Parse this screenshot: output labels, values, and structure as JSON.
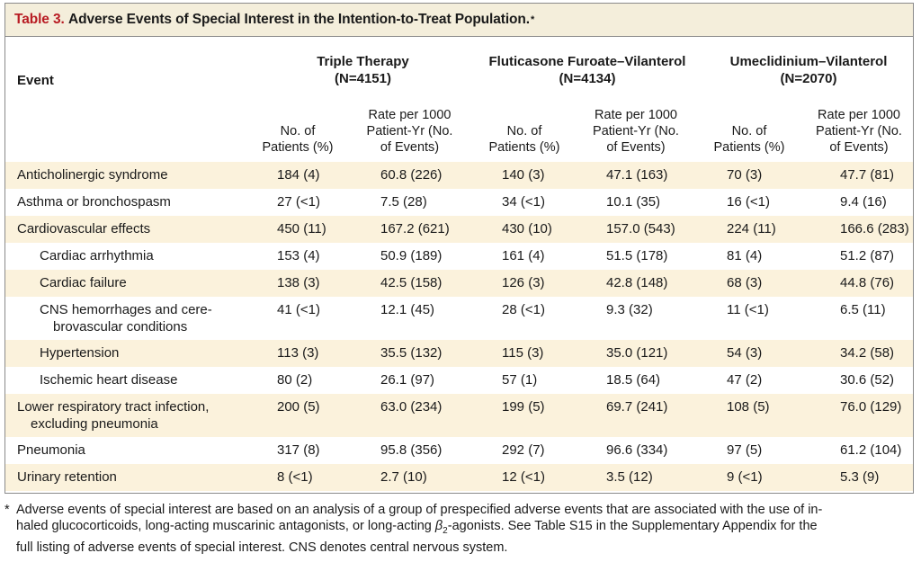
{
  "table": {
    "label": "Table 3.",
    "title": "Adverse Events of Special Interest in the Intention-to-Treat Population.",
    "title_mark": "*",
    "event_header": "Event",
    "groups": [
      {
        "name": "Triple Therapy",
        "n": "(N=4151)"
      },
      {
        "name": "Fluticasone Furoate–Vilanterol",
        "n": "(N=4134)"
      },
      {
        "name": "Umeclidinium–Vilanterol",
        "n": "(N=2070)"
      }
    ],
    "sub_no_1": "No. of",
    "sub_no_2": "Patients (%)",
    "sub_rate_1": "Rate per 1000",
    "sub_rate_2": "Patient-Yr (No.",
    "sub_rate_3": "of Events)",
    "rows": [
      {
        "event": "Anticholinergic syndrome",
        "cells": [
          "184 (4)",
          "60.8 (226)",
          "140 (3)",
          "47.1 (163)",
          "70 (3)",
          "47.7 (81)"
        ]
      },
      {
        "event": "Asthma or bronchospasm",
        "cells": [
          "27 (<1)",
          "7.5 (28)",
          "34 (<1)",
          "10.1 (35)",
          "16 (<1)",
          "9.4 (16)"
        ]
      },
      {
        "event": "Cardiovascular effects",
        "cells": [
          "450 (11)",
          "167.2 (621)",
          "430 (10)",
          "157.0 (543)",
          "224 (11)",
          "166.6 (283)"
        ]
      },
      {
        "event": "Cardiac arrhythmia",
        "cells": [
          "153 (4)",
          "50.9 (189)",
          "161 (4)",
          "51.5 (178)",
          "81 (4)",
          "51.2 (87)"
        ]
      },
      {
        "event": "Cardiac failure",
        "cells": [
          "138 (3)",
          "42.5 (158)",
          "126 (3)",
          "42.8 (148)",
          "68 (3)",
          "44.8 (76)"
        ]
      },
      {
        "event": "CNS hemorrhages and cere-",
        "event_cont": "brovascular conditions",
        "cells": [
          "41 (<1)",
          "12.1 (45)",
          "28 (<1)",
          "9.3 (32)",
          "11 (<1)",
          "6.5 (11)"
        ]
      },
      {
        "event": "Hypertension",
        "cells": [
          "113 (3)",
          "35.5 (132)",
          "115 (3)",
          "35.0 (121)",
          "54 (3)",
          "34.2 (58)"
        ]
      },
      {
        "event": "Ischemic heart disease",
        "cells": [
          "80 (2)",
          "26.1 (97)",
          "57 (1)",
          "18.5 (64)",
          "47 (2)",
          "30.6 (52)"
        ]
      },
      {
        "event": "Lower respiratory tract infection,",
        "event_cont": "excluding pneumonia",
        "cells": [
          "200 (5)",
          "63.0 (234)",
          "199 (5)",
          "69.7 (241)",
          "108 (5)",
          "76.0 (129)"
        ]
      },
      {
        "event": "Pneumonia",
        "cells": [
          "317 (8)",
          "95.8 (356)",
          "292 (7)",
          "96.6 (334)",
          "97 (5)",
          "61.2 (104)"
        ]
      },
      {
        "event": "Urinary retention",
        "cells": [
          "8 (<1)",
          "2.7 (10)",
          "12 (<1)",
          "3.5 (12)",
          "9 (<1)",
          "5.3 (9)"
        ]
      }
    ],
    "footnote_mark": "*",
    "footnote_line1": "Adverse events of special interest are based on an analysis of a group of prespecified adverse events that are associated with the use of in-",
    "footnote_line2_a": "haled glucocorticoids, long-acting muscarinic antagonists, or long-acting ",
    "footnote_beta": "β",
    "footnote_beta_sub": "2",
    "footnote_line2_b": "-agonists. See Table S15 in the Supplementary Appendix for the",
    "footnote_line3": "full listing of adverse events of special interest. CNS denotes central nervous system."
  },
  "colors": {
    "title_bg": "#f4eedb",
    "row_shade": "#fbf2dc",
    "label_red": "#b81c23",
    "border": "#8a8a8a"
  }
}
